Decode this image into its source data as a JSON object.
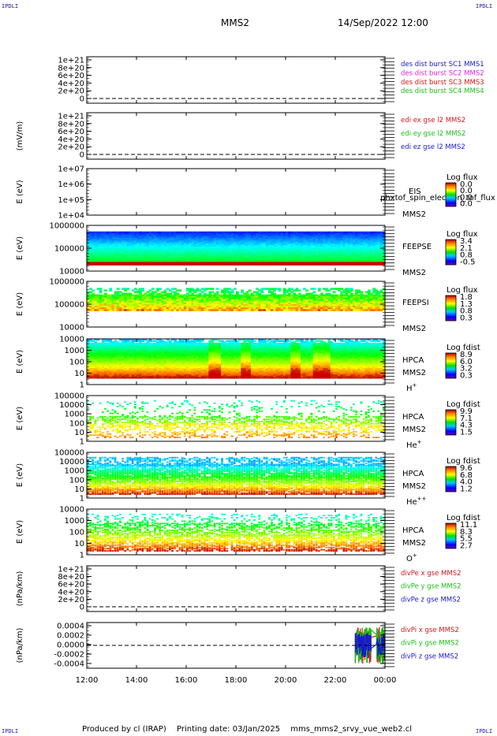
{
  "header": {
    "corner_label": "IPDLI",
    "spacecraft": "MMS2",
    "datetime": "14/Sep/2022 12:00"
  },
  "footer": {
    "producer": "Produced by cl (IRAP)",
    "printing_date": "Printing date: 03/Jan/2025",
    "file": "mms_mms2_srvy_vue_web2.cl"
  },
  "colors": {
    "mms1": "#1a1acc",
    "mms2": "#e020e0",
    "mms3": "#d01818",
    "mms4": "#18c018",
    "x": "#d01818",
    "y": "#18c018",
    "z": "#1a1acc"
  },
  "chart_data": {
    "type": "spectrogram-stack",
    "x_axis": {
      "ticks": [
        "12:00",
        "14:00",
        "16:00",
        "18:00",
        "20:00",
        "22:00",
        "00:00"
      ],
      "range_hours": [
        12,
        24
      ]
    },
    "panels": [
      {
        "id": "des-dist-burst",
        "type": "line",
        "ylabel": "",
        "yticks": [
          "1e+21",
          "8e+20",
          "6e+20",
          "4e+20",
          "2e+20",
          "0"
        ],
        "legend": [
          {
            "text": "des dist burst SC1 MMS1",
            "color": "#1a1acc"
          },
          {
            "text": "des dist burst SC2 MMS2",
            "color": "#e020e0"
          },
          {
            "text": "des dist burst SC3 MMS3",
            "color": "#d01818"
          },
          {
            "text": "des dist burst SC4 MMS4",
            "color": "#18c018"
          }
        ],
        "zero_line": true
      },
      {
        "id": "edi-e-gse",
        "type": "line",
        "ylabel": "(mV/m)",
        "yticks": [
          "1e+21",
          "8e+20",
          "6e+20",
          "4e+20",
          "2e+20",
          "0"
        ],
        "legend": [
          {
            "text": "edi ex gse l2 MMS2",
            "color": "#d01818"
          },
          {
            "text": "edi ey gse l2 MMS2",
            "color": "#18c018"
          },
          {
            "text": "edi ez gse l2 MMS2",
            "color": "#1a1acc"
          }
        ],
        "zero_line": true
      },
      {
        "id": "eis",
        "type": "heatmap",
        "ylabel": "E (eV)",
        "yticks": [
          "1e+07",
          "1e+06",
          "1e+05",
          "1e+04"
        ],
        "instrument": [
          "EIS",
          "MMS2"
        ],
        "overlay_text": "phxtof_spin_electron_tof_flux",
        "colorbar": {
          "title": "Log flux",
          "ticks": [
            "0.0",
            "0.0",
            "0.0",
            "0.0"
          ]
        },
        "data": "empty"
      },
      {
        "id": "feeps-e",
        "type": "heatmap",
        "ylabel": "E (eV)",
        "yticks": [
          "1000000",
          "100000",
          "10000"
        ],
        "instrument": [
          "FEEPSE",
          "MMS2"
        ],
        "colorbar": {
          "title": "Log flux",
          "ticks": [
            "3.4",
            "2.1",
            "0.8",
            "-0.5"
          ]
        }
      },
      {
        "id": "feeps-i",
        "type": "heatmap",
        "ylabel": "E (eV)",
        "yticks": [
          "1000000",
          "100000",
          "10000"
        ],
        "instrument": [
          "FEEPSI",
          "MMS2"
        ],
        "colorbar": {
          "title": "Log flux",
          "ticks": [
            "1.8",
            "1.3",
            "0.8",
            "0.3"
          ]
        }
      },
      {
        "id": "hpca-h",
        "type": "heatmap",
        "ylabel": "E (eV)",
        "yticks": [
          "10000",
          "1000",
          "100",
          "10",
          "1"
        ],
        "instrument": [
          "HPCA",
          "MMS2"
        ],
        "species": {
          "base": "H",
          "sup": "+"
        },
        "colorbar": {
          "title": "Log fdist",
          "ticks": [
            "8.9",
            "6.0",
            "3.2",
            "0.3"
          ]
        }
      },
      {
        "id": "hpca-he1",
        "type": "heatmap",
        "ylabel": "E (eV)",
        "yticks": [
          "100000",
          "10000",
          "1000",
          "100",
          "10",
          "1"
        ],
        "instrument": [
          "HPCA",
          "MMS2"
        ],
        "species": {
          "base": "He",
          "sup": "+"
        },
        "colorbar": {
          "title": "Log fdist",
          "ticks": [
            "9.9",
            "7.1",
            "4.3",
            "1.5"
          ]
        }
      },
      {
        "id": "hpca-he2",
        "type": "heatmap",
        "ylabel": "E (eV)",
        "yticks": [
          "100000",
          "10000",
          "1000",
          "100",
          "10",
          "1"
        ],
        "instrument": [
          "HPCA",
          "MMS2"
        ],
        "species": {
          "base": "He",
          "sup": "++"
        },
        "colorbar": {
          "title": "Log fdist",
          "ticks": [
            "9.6",
            "6.8",
            "4.0",
            "1.2"
          ]
        }
      },
      {
        "id": "hpca-o",
        "type": "heatmap",
        "ylabel": "E (eV)",
        "yticks": [
          "10000",
          "1000",
          "100",
          "10",
          "1"
        ],
        "instrument": [
          "HPCA",
          "MMS2"
        ],
        "species": {
          "base": "O",
          "sup": "+"
        },
        "colorbar": {
          "title": "Log fdist",
          "ticks": [
            "11.1",
            "8.3",
            "5.5",
            "2.7"
          ]
        }
      },
      {
        "id": "divpe",
        "type": "line",
        "ylabel": "(nPa/km)",
        "yticks": [
          "1e+21",
          "8e+20",
          "6e+20",
          "4e+20",
          "2e+20",
          "0"
        ],
        "legend": [
          {
            "text": "divPe x gse MMS2",
            "color": "#d01818"
          },
          {
            "text": "divPe y gse MMS2",
            "color": "#18c018"
          },
          {
            "text": "divPe z gse MMS2",
            "color": "#1a1acc"
          }
        ],
        "zero_line": true
      },
      {
        "id": "divpi",
        "type": "line",
        "ylabel": "(nPa/km)",
        "yticks": [
          "0.0004",
          "0.0002",
          "0.0000",
          "-0.0002",
          "-0.0004"
        ],
        "ylim": [
          -0.0004,
          0.0004
        ],
        "legend": [
          {
            "text": "divPi x gse MMS2",
            "color": "#d01818"
          },
          {
            "text": "divPi y gse MMS2",
            "color": "#18c018"
          },
          {
            "text": "divPi z gse MMS2",
            "color": "#1a1acc"
          }
        ],
        "zero_line": true,
        "burst_hours": [
          22.8,
          24.0
        ],
        "burst_amplitude": 0.0002
      }
    ]
  }
}
